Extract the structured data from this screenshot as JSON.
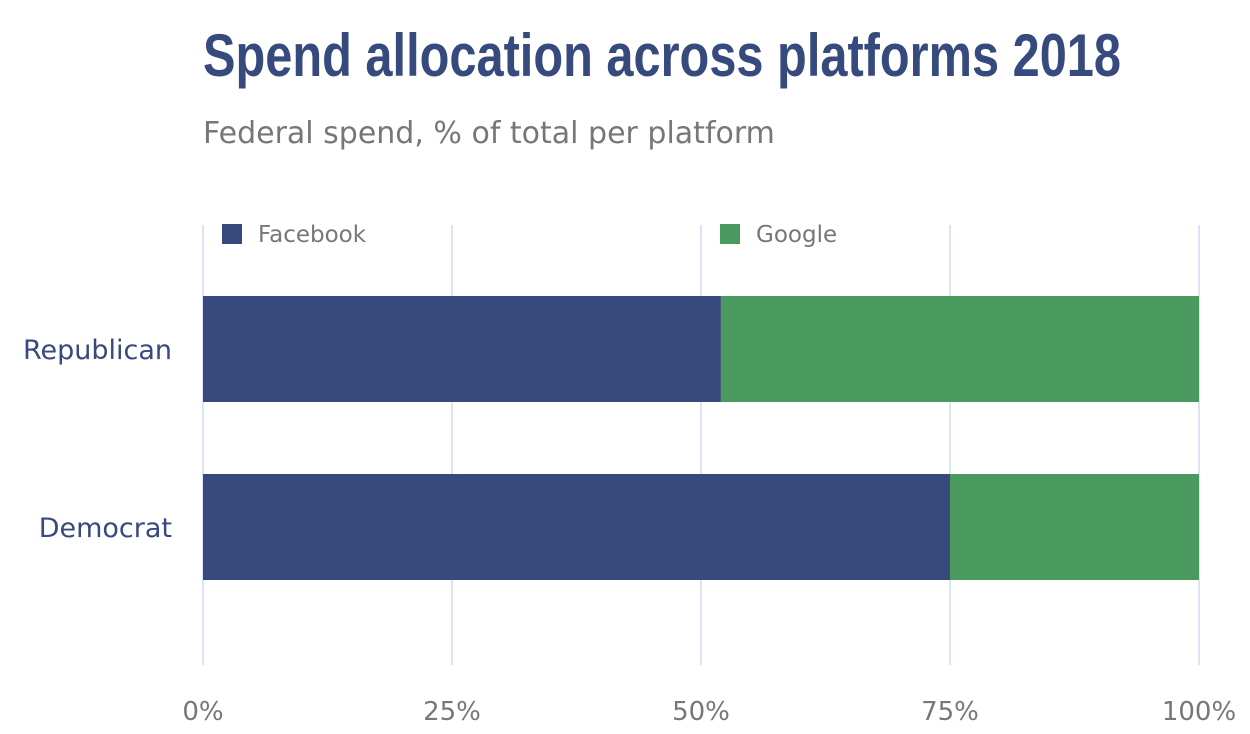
{
  "chart_data": {
    "type": "bar",
    "orientation": "horizontal",
    "stacked": true,
    "title": "Spend allocation across platforms 2018",
    "subtitle": "Federal spend, % of total per platform",
    "categories": [
      "Republican",
      "Democrat"
    ],
    "series": [
      {
        "name": "Facebook",
        "color": "#374a7e",
        "values": [
          52,
          75
        ]
      },
      {
        "name": "Google",
        "color": "#4a9a60",
        "values": [
          48,
          25
        ]
      }
    ],
    "xlim": [
      0,
      100
    ],
    "x_ticks": [
      0,
      25,
      50,
      75,
      100
    ],
    "x_tick_labels": [
      "0%",
      "25%",
      "50%",
      "75%",
      "100%"
    ],
    "grid": "vertical",
    "legend_position": "top",
    "colors": {
      "title": "#374a7e",
      "subtitle": "#777777",
      "category_label": "#374a7e",
      "tick_label": "#777777",
      "grid": "#dbe3f7"
    }
  }
}
